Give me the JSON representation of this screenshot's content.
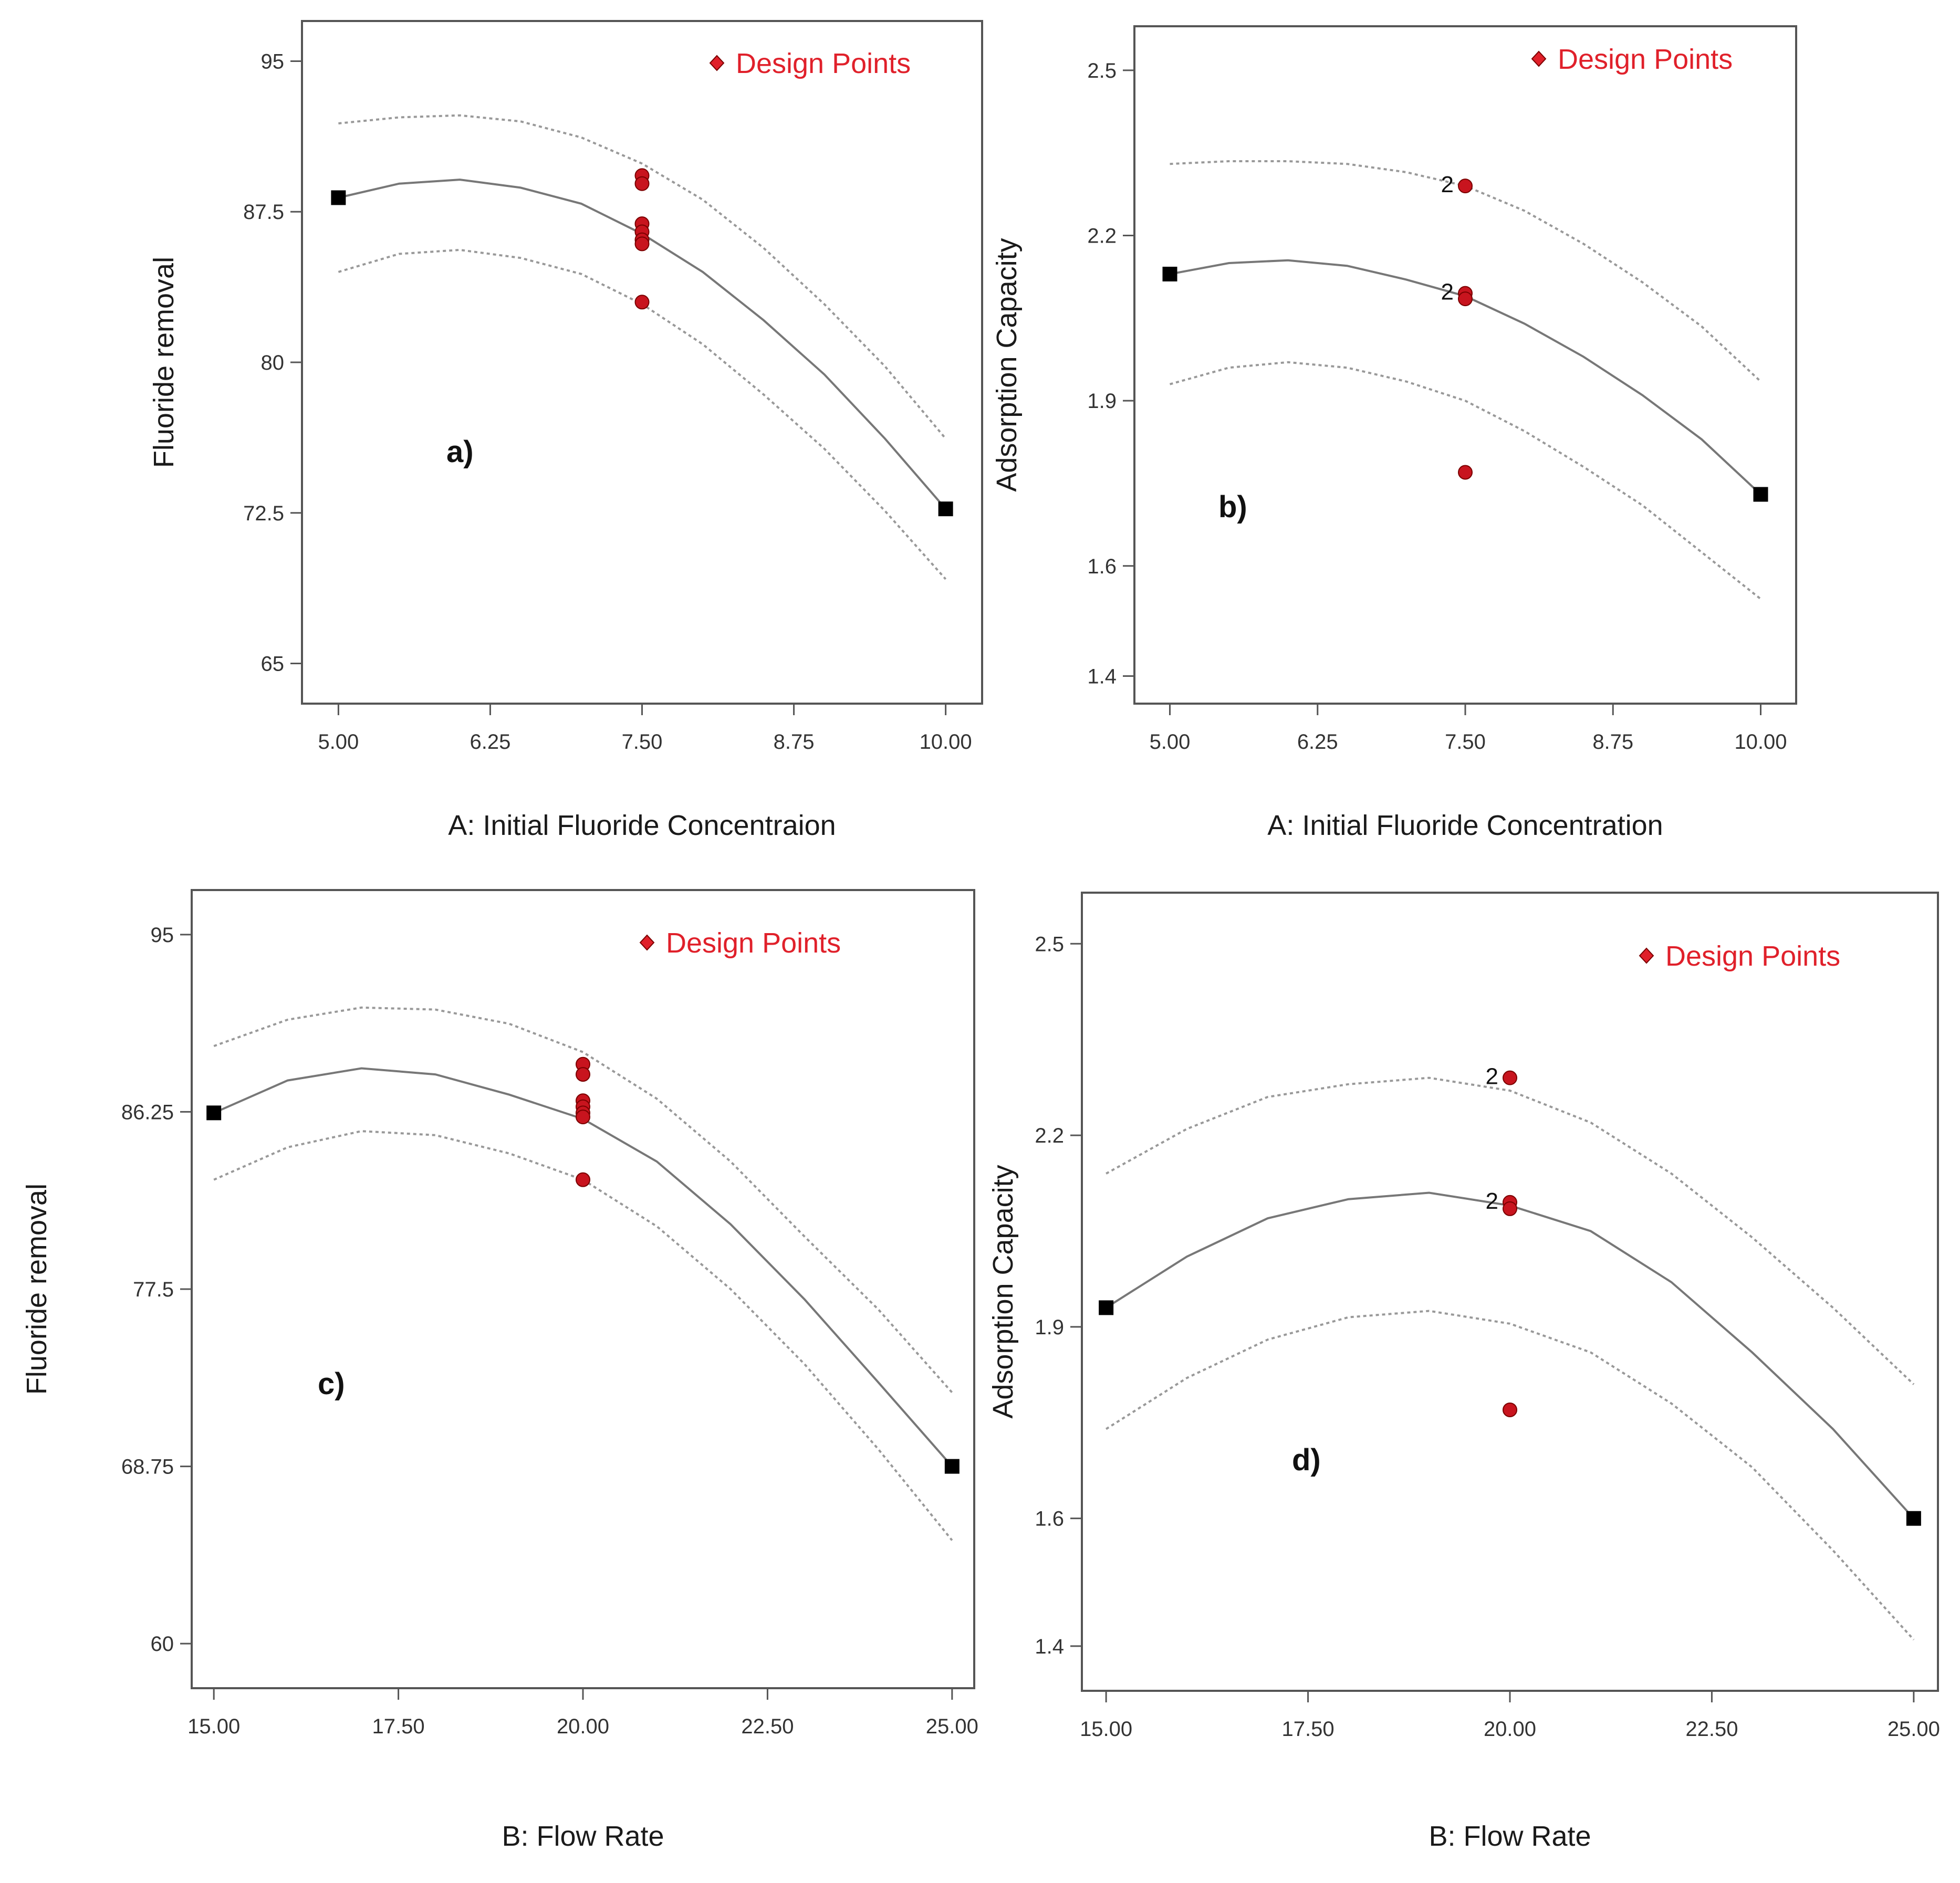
{
  "legend": {
    "label": "Design Points",
    "marker_color": "#e0202a"
  },
  "colors": {
    "design_point": "#c8141e",
    "design_point_edge": "#7a0000",
    "fit_line": "#777777",
    "ci_line": "#999999",
    "endpoint": "#000000",
    "frame": "#555555"
  },
  "chart_data": [
    {
      "type": "scatter",
      "panel_label": "a)",
      "xlabel": "A: Initial Fluoride Concentraion",
      "ylabel": "Fluoride removal",
      "xlim": [
        4.7,
        10.3
      ],
      "ylim": [
        63,
        97
      ],
      "x_ticks": [
        "5.00",
        "6.25",
        "7.50",
        "8.75",
        "10.00"
      ],
      "y_ticks": [
        "65",
        "72.5",
        "80",
        "87.5",
        "95"
      ],
      "fit": {
        "x": [
          5.0,
          5.5,
          6.0,
          6.5,
          7.0,
          7.5,
          8.0,
          8.5,
          9.0,
          9.5,
          10.0
        ],
        "y": [
          88.2,
          88.9,
          89.1,
          88.7,
          87.9,
          86.4,
          84.5,
          82.1,
          79.4,
          76.2,
          72.7
        ]
      },
      "ci_upper": {
        "x": [
          5.0,
          5.5,
          6.0,
          6.5,
          7.0,
          7.5,
          8.0,
          8.5,
          9.0,
          9.5,
          10.0
        ],
        "y": [
          91.9,
          92.2,
          92.3,
          92.0,
          91.2,
          89.9,
          88.1,
          85.7,
          82.9,
          79.8,
          76.2
        ]
      },
      "ci_lower": {
        "x": [
          5.0,
          5.5,
          6.0,
          6.5,
          7.0,
          7.5,
          8.0,
          8.5,
          9.0,
          9.5,
          10.0
        ],
        "y": [
          84.5,
          85.4,
          85.6,
          85.2,
          84.4,
          82.9,
          80.9,
          78.4,
          75.7,
          72.6,
          69.2
        ]
      },
      "design_points": {
        "x": [
          7.5,
          7.5,
          7.5,
          7.5,
          7.5,
          7.5,
          7.5
        ],
        "y": [
          89.3,
          88.9,
          86.9,
          86.5,
          86.1,
          85.9,
          83.0
        ]
      },
      "replicate_labels": [],
      "endpoints": {
        "x": [
          5.0,
          10.0
        ],
        "y": [
          88.2,
          72.7
        ]
      }
    },
    {
      "type": "scatter",
      "panel_label": "b)",
      "xlabel": "A: Initial Fluoride Concentration",
      "ylabel": "Adsorption Capacity",
      "xlim": [
        4.7,
        10.3
      ],
      "ylim": [
        1.35,
        2.58
      ],
      "x_ticks": [
        "5.00",
        "6.25",
        "7.50",
        "8.75",
        "10.00"
      ],
      "y_ticks": [
        "1.4",
        "1.6",
        "1.9",
        "2.2",
        "2.5"
      ],
      "fit": {
        "x": [
          5.0,
          5.5,
          6.0,
          6.5,
          7.0,
          7.5,
          8.0,
          8.5,
          9.0,
          9.5,
          10.0
        ],
        "y": [
          2.13,
          2.15,
          2.155,
          2.145,
          2.12,
          2.09,
          2.04,
          1.98,
          1.91,
          1.83,
          1.73
        ]
      },
      "ci_upper": {
        "x": [
          5.0,
          5.5,
          6.0,
          6.5,
          7.0,
          7.5,
          8.0,
          8.5,
          9.0,
          9.5,
          10.0
        ],
        "y": [
          2.33,
          2.335,
          2.335,
          2.33,
          2.315,
          2.29,
          2.245,
          2.185,
          2.115,
          2.035,
          1.935
        ]
      },
      "ci_lower": {
        "x": [
          5.0,
          5.5,
          6.0,
          6.5,
          7.0,
          7.5,
          8.0,
          8.5,
          9.0,
          9.5,
          10.0
        ],
        "y": [
          1.93,
          1.96,
          1.97,
          1.96,
          1.935,
          1.9,
          1.845,
          1.78,
          1.71,
          1.625,
          1.54
        ]
      },
      "design_points": {
        "x": [
          7.5,
          7.5,
          7.5,
          7.5
        ],
        "y": [
          2.29,
          2.095,
          2.085,
          1.77
        ]
      },
      "replicate_labels": [
        {
          "text": "2",
          "x": 7.5,
          "y": 2.29
        },
        {
          "text": "2",
          "x": 7.5,
          "y": 2.095
        }
      ],
      "endpoints": {
        "x": [
          5.0,
          10.0
        ],
        "y": [
          2.13,
          1.73
        ]
      }
    },
    {
      "type": "scatter",
      "panel_label": "c)",
      "xlabel": "B: Flow Rate",
      "ylabel": "Fluoride removal",
      "xlim": [
        14.7,
        25.3
      ],
      "ylim": [
        57.8,
        97.2
      ],
      "x_ticks": [
        "15.00",
        "17.50",
        "20.00",
        "22.50",
        "25.00"
      ],
      "y_ticks": [
        "60",
        "68.75",
        "77.5",
        "86.25",
        "95"
      ],
      "fit": {
        "x": [
          15,
          16,
          17,
          18,
          19,
          20,
          21,
          22,
          23,
          24,
          25
        ],
        "y": [
          86.2,
          87.8,
          88.4,
          88.1,
          87.1,
          85.9,
          83.8,
          80.7,
          77.0,
          72.9,
          68.75
        ]
      },
      "ci_upper": {
        "x": [
          15,
          16,
          17,
          18,
          19,
          20,
          21,
          22,
          23,
          24,
          25
        ],
        "y": [
          89.5,
          90.8,
          91.4,
          91.3,
          90.6,
          89.2,
          86.9,
          83.8,
          80.1,
          76.5,
          72.4
        ]
      },
      "ci_lower": {
        "x": [
          15,
          16,
          17,
          18,
          19,
          20,
          21,
          22,
          23,
          24,
          25
        ],
        "y": [
          82.9,
          84.5,
          85.3,
          85.1,
          84.2,
          82.9,
          80.6,
          77.5,
          73.8,
          69.6,
          65.1
        ]
      },
      "design_points": {
        "x": [
          20,
          20,
          20,
          20,
          20,
          20,
          20
        ],
        "y": [
          88.6,
          88.1,
          86.8,
          86.5,
          86.2,
          86.0,
          82.9
        ]
      },
      "replicate_labels": [],
      "endpoints": {
        "x": [
          15,
          25
        ],
        "y": [
          86.2,
          68.75
        ]
      }
    },
    {
      "type": "scatter",
      "panel_label": "d)",
      "xlabel": "B: Flow Rate",
      "ylabel": "Adsorption Capacity",
      "xlim": [
        14.7,
        25.3
      ],
      "ylim": [
        1.33,
        2.58
      ],
      "x_ticks": [
        "15.00",
        "17.50",
        "20.00",
        "22.50",
        "25.00"
      ],
      "y_ticks": [
        "1.4",
        "1.6",
        "1.9",
        "2.2",
        "2.5"
      ],
      "fit": {
        "x": [
          15,
          16,
          17,
          18,
          19,
          20,
          21,
          22,
          23,
          24,
          25
        ],
        "y": [
          1.93,
          2.01,
          2.07,
          2.1,
          2.11,
          2.09,
          2.05,
          1.97,
          1.86,
          1.74,
          1.6
        ]
      },
      "ci_upper": {
        "x": [
          15,
          16,
          17,
          18,
          19,
          20,
          21,
          22,
          23,
          24,
          25
        ],
        "y": [
          2.14,
          2.21,
          2.26,
          2.28,
          2.29,
          2.27,
          2.22,
          2.14,
          2.04,
          1.93,
          1.81
        ]
      },
      "ci_lower": {
        "x": [
          15,
          16,
          17,
          18,
          19,
          20,
          21,
          22,
          23,
          24,
          25
        ],
        "y": [
          1.74,
          1.82,
          1.88,
          1.915,
          1.925,
          1.905,
          1.86,
          1.78,
          1.68,
          1.55,
          1.41
        ]
      },
      "design_points": {
        "x": [
          20,
          20,
          20,
          20
        ],
        "y": [
          2.29,
          2.095,
          2.085,
          1.77
        ]
      },
      "replicate_labels": [
        {
          "text": "2",
          "x": 20,
          "y": 2.29
        },
        {
          "text": "2",
          "x": 20,
          "y": 2.095
        }
      ],
      "endpoints": {
        "x": [
          15,
          25
        ],
        "y": [
          1.93,
          1.6
        ]
      }
    }
  ]
}
